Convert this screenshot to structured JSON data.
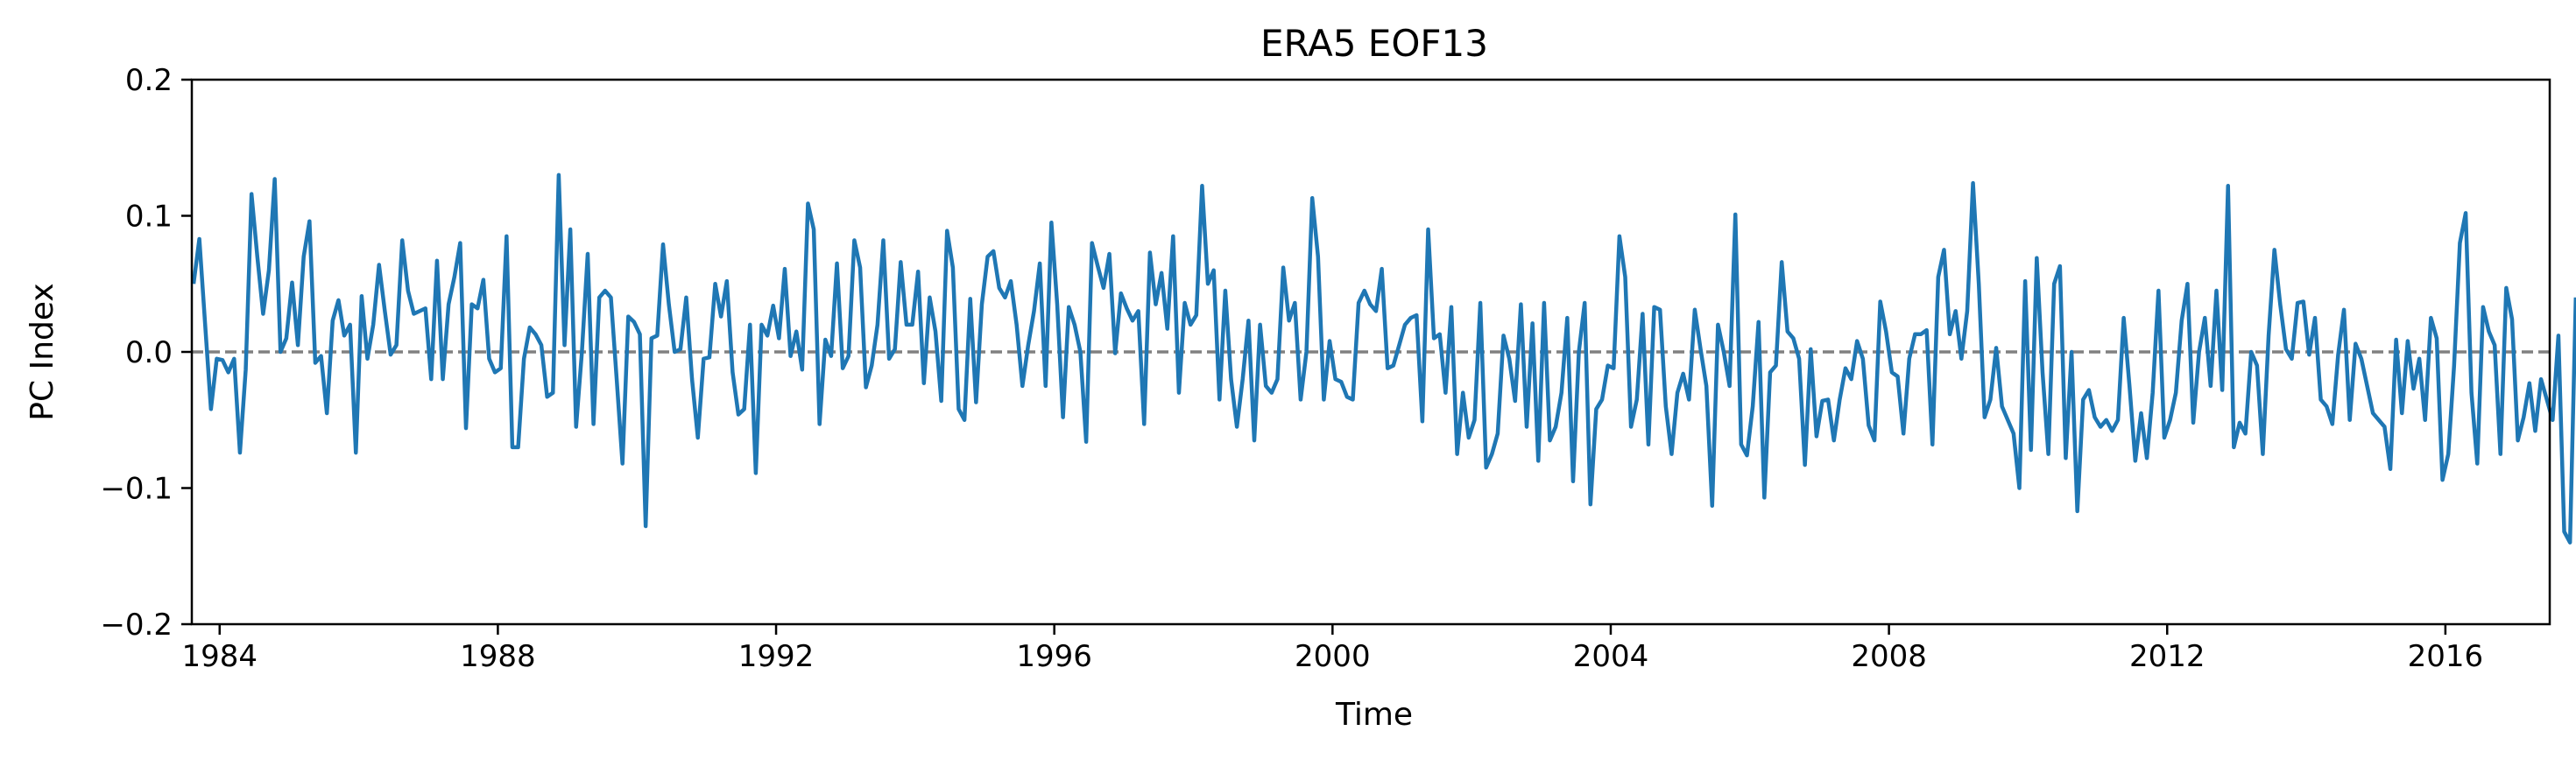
{
  "chart_data": {
    "type": "line",
    "title": "ERA5  EOF13",
    "xlabel": "Time",
    "ylabel": "PC Index",
    "xlim": [
      1983.6,
      2017.5
    ],
    "ylim": [
      -0.2,
      0.2
    ],
    "x_ticks": [
      1984,
      1988,
      1992,
      1996,
      2000,
      2004,
      2008,
      2012,
      2016
    ],
    "x_tick_labels": [
      "1984",
      "1988",
      "1992",
      "1996",
      "2000",
      "2004",
      "2008",
      "2012",
      "2016"
    ],
    "y_ticks": [
      -0.2,
      -0.1,
      0.0,
      0.1,
      0.2
    ],
    "y_tick_labels": [
      "−0.2",
      "−0.1",
      "0.0",
      "0.1",
      "0.2"
    ],
    "grid": false,
    "reference_line": {
      "y": 0.0,
      "style": "dashed",
      "color": "#808080"
    },
    "series": [
      {
        "color": "#1f77b4",
        "x_start": 1983.625,
        "x_step_months": 1,
        "values": [
          0.05,
          0.083,
          0.02,
          -0.042,
          -0.005,
          -0.006,
          -0.015,
          -0.005,
          -0.074,
          -0.013,
          0.116,
          0.07,
          0.028,
          0.06,
          0.127,
          0.0,
          0.01,
          0.051,
          0.005,
          0.07,
          0.096,
          -0.008,
          -0.003,
          -0.045,
          0.023,
          0.038,
          0.012,
          0.02,
          -0.074,
          0.041,
          -0.005,
          0.02,
          0.064,
          0.03,
          -0.002,
          0.005,
          0.082,
          0.045,
          0.028,
          0.03,
          0.032,
          -0.02,
          0.067,
          -0.02,
          0.035,
          0.055,
          0.08,
          -0.056,
          0.035,
          0.032,
          0.053,
          -0.005,
          -0.015,
          -0.012,
          0.085,
          -0.07,
          -0.07,
          -0.005,
          0.018,
          0.013,
          0.005,
          -0.033,
          -0.03,
          0.13,
          0.005,
          0.09,
          -0.055,
          0.0,
          0.072,
          -0.053,
          0.04,
          0.045,
          0.04,
          -0.02,
          -0.082,
          0.026,
          0.022,
          0.013,
          -0.128,
          0.01,
          0.012,
          0.079,
          0.035,
          0.0,
          0.002,
          0.04,
          -0.02,
          -0.063,
          -0.005,
          -0.004,
          0.05,
          0.026,
          0.052,
          -0.015,
          -0.046,
          -0.042,
          0.02,
          -0.089,
          0.02,
          0.012,
          0.034,
          0.01,
          0.061,
          -0.003,
          0.015,
          -0.013,
          0.109,
          0.09,
          -0.053,
          0.009,
          -0.003,
          0.065,
          -0.012,
          -0.003,
          0.082,
          0.062,
          -0.026,
          -0.01,
          0.02,
          0.082,
          -0.005,
          0.002,
          0.066,
          0.02,
          0.02,
          0.059,
          -0.023,
          0.04,
          0.015,
          -0.036,
          0.089,
          0.062,
          -0.042,
          -0.05,
          0.039,
          -0.037,
          0.035,
          0.07,
          0.074,
          0.047,
          0.04,
          0.052,
          0.02,
          -0.025,
          0.005,
          0.03,
          0.065,
          -0.025,
          0.095,
          0.035,
          -0.048,
          0.033,
          0.02,
          0.0,
          -0.066,
          0.08,
          0.063,
          0.047,
          0.072,
          -0.001,
          0.043,
          0.032,
          0.023,
          0.03,
          -0.053,
          0.073,
          0.035,
          0.058,
          0.017,
          0.085,
          -0.03,
          0.036,
          0.02,
          0.027,
          0.122,
          0.05,
          0.06,
          -0.035,
          0.045,
          -0.02,
          -0.055,
          -0.02,
          0.023,
          -0.065,
          0.02,
          -0.025,
          -0.03,
          -0.02,
          0.062,
          0.023,
          0.036,
          -0.035,
          0.0,
          0.113,
          0.07,
          -0.035,
          0.008,
          -0.02,
          -0.022,
          -0.033,
          -0.035,
          0.036,
          0.045,
          0.035,
          0.03,
          0.061,
          -0.012,
          -0.01,
          0.005,
          0.02,
          0.025,
          0.027,
          -0.051,
          0.09,
          0.01,
          0.013,
          -0.03,
          0.033,
          -0.075,
          -0.03,
          -0.063,
          -0.05,
          0.036,
          -0.085,
          -0.075,
          -0.06,
          0.012,
          -0.005,
          -0.036,
          0.035,
          -0.055,
          0.021,
          -0.08,
          0.036,
          -0.065,
          -0.055,
          -0.03,
          0.025,
          -0.095,
          0.0,
          0.036,
          -0.112,
          -0.042,
          -0.035,
          -0.01,
          -0.012,
          0.085,
          0.055,
          -0.055,
          -0.035,
          0.028,
          -0.068,
          0.033,
          0.031,
          -0.04,
          -0.075,
          -0.03,
          -0.016,
          -0.035,
          0.031,
          0.002,
          -0.025,
          -0.113,
          0.02,
          0.0,
          -0.025,
          0.101,
          -0.068,
          -0.076,
          -0.04,
          0.022,
          -0.107,
          -0.015,
          -0.01,
          0.066,
          0.015,
          0.01,
          -0.005,
          -0.083,
          0.002,
          -0.062,
          -0.036,
          -0.035,
          -0.065,
          -0.035,
          -0.012,
          -0.02,
          0.008,
          -0.005,
          -0.054,
          -0.065,
          0.037,
          0.015,
          -0.015,
          -0.018,
          -0.06,
          -0.005,
          0.013,
          0.013,
          0.016,
          -0.068,
          0.055,
          0.075,
          0.013,
          0.03,
          -0.005,
          0.03,
          0.124,
          0.05,
          -0.048,
          -0.035,
          0.003,
          -0.04,
          -0.05,
          -0.06,
          -0.1,
          0.052,
          -0.072,
          0.069,
          -0.015,
          -0.075,
          0.05,
          0.063,
          -0.078,
          0.0,
          -0.117,
          -0.035,
          -0.028,
          -0.048,
          -0.055,
          -0.05,
          -0.058,
          -0.05,
          0.025,
          -0.025,
          -0.08,
          -0.045,
          -0.078,
          -0.03,
          0.045,
          -0.063,
          -0.05,
          -0.03,
          0.023,
          0.05,
          -0.052,
          0.0,
          0.025,
          -0.025,
          0.045,
          -0.028,
          0.122,
          -0.07,
          -0.052,
          -0.06,
          0.0,
          -0.01,
          -0.075,
          0.012,
          0.075,
          0.035,
          0.002,
          -0.005,
          0.036,
          0.037,
          -0.002,
          0.025,
          -0.035,
          -0.04,
          -0.053,
          -0.002,
          0.031,
          -0.05,
          0.006,
          -0.005,
          -0.025,
          -0.045,
          -0.05,
          -0.055,
          -0.086,
          0.009,
          -0.045,
          0.008,
          -0.027,
          -0.005,
          -0.05,
          0.025,
          0.01,
          -0.094,
          -0.075,
          -0.01,
          0.08,
          0.102,
          -0.03,
          -0.082,
          0.033,
          0.015,
          0.005,
          -0.075,
          0.047,
          0.024,
          -0.065,
          -0.048,
          -0.023,
          -0.058,
          -0.02,
          -0.035,
          -0.05,
          0.012,
          -0.132,
          -0.14,
          0.04
        ]
      }
    ]
  }
}
